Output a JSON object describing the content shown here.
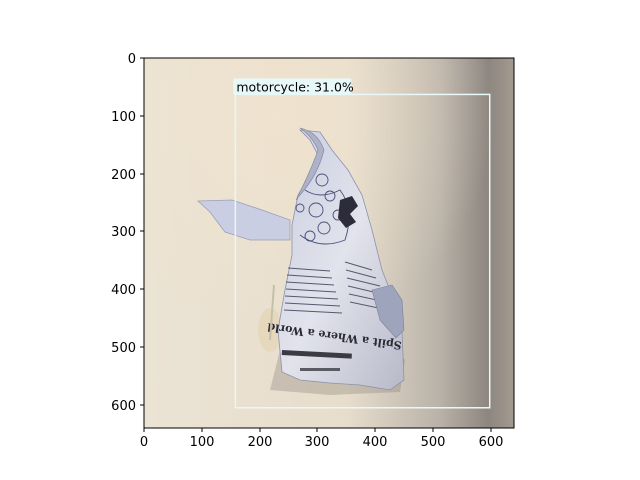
{
  "figure": {
    "x_ticks": [
      "0",
      "100",
      "200",
      "300",
      "400",
      "500",
      "600"
    ],
    "y_ticks": [
      "0",
      "100",
      "200",
      "300",
      "400",
      "500",
      "600"
    ],
    "xlim": [
      0,
      640
    ],
    "ylim": [
      640,
      0
    ]
  },
  "detection": {
    "label": "motorcycle: 31.0%",
    "box": {
      "x1": 158,
      "y1": 63,
      "x2": 598,
      "y2": 605
    },
    "box_color": "#e8f8f8",
    "label_bg": "#e8f8f8"
  },
  "photo": {
    "subject": "crumpled-newspaper",
    "newspaper_text": "Spilt a Where a World",
    "background_color": "#ece2d2"
  }
}
